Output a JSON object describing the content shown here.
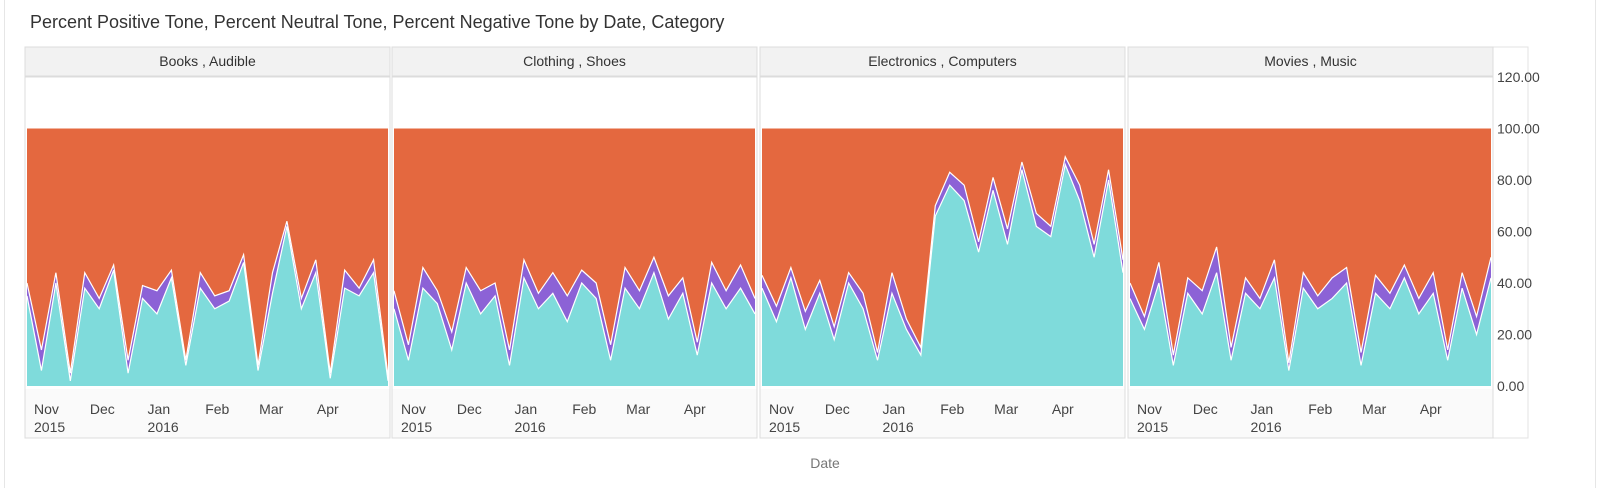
{
  "chart_data": {
    "type": "area",
    "stacked": true,
    "title": "Percent Positive Tone, Percent Neutral Tone, Percent Negative Tone by Date, Category",
    "xlabel": "Date",
    "ylabel": "",
    "ylim": [
      0,
      120
    ],
    "y_ticks": [
      "0.00",
      "20.00",
      "40.00",
      "60.00",
      "80.00",
      "100.00",
      "120.00"
    ],
    "y_axis_position": "right",
    "x_range": [
      "2015-10-25",
      "2016-05-06"
    ],
    "x_ticks": [
      {
        "label": "Nov",
        "sub": "2015",
        "date": "2015-11-01"
      },
      {
        "label": "Dec",
        "sub": "",
        "date": "2015-12-01"
      },
      {
        "label": "Jan",
        "sub": "2016",
        "date": "2016-01-01"
      },
      {
        "label": "Feb",
        "sub": "",
        "date": "2016-02-01"
      },
      {
        "label": "Mar",
        "sub": "",
        "date": "2016-03-01"
      },
      {
        "label": "Apr",
        "sub": "",
        "date": "2016-04-01"
      }
    ],
    "series_colors": {
      "positive": "#7fdbdb",
      "neutral": "#8c62d6",
      "negative": "#e4683f"
    },
    "grid": false,
    "legend": "none",
    "series_points": 26,
    "panels": [
      {
        "name": "Books , Audible",
        "start_date": "2015-10-25",
        "end_date": "2016-05-06",
        "positive": [
          35,
          6,
          40,
          2,
          38,
          30,
          45,
          5,
          34,
          28,
          42,
          8,
          38,
          30,
          33,
          48,
          6,
          36,
          62,
          30,
          44,
          3,
          38,
          35,
          44,
          2
        ],
        "neutral": [
          5,
          8,
          4,
          3,
          6,
          4,
          2,
          5,
          5,
          9,
          3,
          2,
          6,
          5,
          4,
          3,
          2,
          8,
          2,
          4,
          5,
          2,
          7,
          3,
          5,
          2
        ],
        "negative": [
          60,
          86,
          56,
          95,
          56,
          66,
          53,
          90,
          61,
          63,
          55,
          90,
          56,
          65,
          63,
          49,
          92,
          56,
          36,
          66,
          51,
          95,
          55,
          62,
          51,
          96
        ]
      },
      {
        "name": "Clothing , Shoes",
        "start_date": "2015-10-25",
        "end_date": "2016-05-06",
        "positive": [
          30,
          10,
          38,
          32,
          14,
          40,
          28,
          35,
          8,
          42,
          30,
          36,
          25,
          40,
          34,
          10,
          38,
          30,
          44,
          26,
          36,
          12,
          40,
          30,
          38,
          28
        ],
        "neutral": [
          7,
          6,
          8,
          5,
          7,
          6,
          9,
          5,
          6,
          7,
          6,
          8,
          10,
          5,
          6,
          6,
          8,
          7,
          6,
          9,
          6,
          5,
          8,
          7,
          9,
          6
        ],
        "negative": [
          63,
          84,
          54,
          63,
          79,
          54,
          63,
          60,
          86,
          51,
          64,
          56,
          65,
          55,
          60,
          84,
          54,
          63,
          50,
          65,
          58,
          83,
          52,
          63,
          53,
          66
        ]
      },
      {
        "name": "Electronics , Computers",
        "start_date": "2015-10-25",
        "end_date": "2016-05-06",
        "positive": [
          38,
          25,
          42,
          22,
          36,
          18,
          40,
          30,
          10,
          36,
          22,
          12,
          66,
          78,
          72,
          52,
          76,
          55,
          84,
          62,
          58,
          86,
          72,
          50,
          80,
          44
        ],
        "neutral": [
          5,
          6,
          4,
          7,
          5,
          5,
          4,
          6,
          3,
          8,
          4,
          3,
          4,
          5,
          6,
          4,
          5,
          6,
          3,
          5,
          4,
          3,
          6,
          5,
          4,
          5
        ],
        "negative": [
          57,
          69,
          54,
          71,
          59,
          77,
          56,
          64,
          87,
          56,
          74,
          85,
          30,
          17,
          22,
          44,
          19,
          39,
          13,
          33,
          38,
          11,
          22,
          45,
          16,
          51
        ]
      },
      {
        "name": "Movies , Music",
        "start_date": "2015-10-25",
        "end_date": "2016-05-06",
        "positive": [
          34,
          22,
          40,
          8,
          36,
          28,
          44,
          10,
          36,
          30,
          42,
          6,
          38,
          30,
          34,
          40,
          8,
          36,
          30,
          42,
          28,
          36,
          10,
          38,
          20,
          42
        ],
        "neutral": [
          6,
          5,
          8,
          4,
          6,
          9,
          10,
          5,
          6,
          4,
          7,
          3,
          6,
          5,
          8,
          6,
          5,
          7,
          6,
          5,
          6,
          8,
          4,
          6,
          7,
          8
        ],
        "negative": [
          60,
          73,
          52,
          88,
          58,
          63,
          46,
          85,
          58,
          66,
          51,
          91,
          56,
          65,
          58,
          54,
          87,
          57,
          64,
          53,
          66,
          56,
          86,
          56,
          73,
          50
        ]
      }
    ]
  }
}
